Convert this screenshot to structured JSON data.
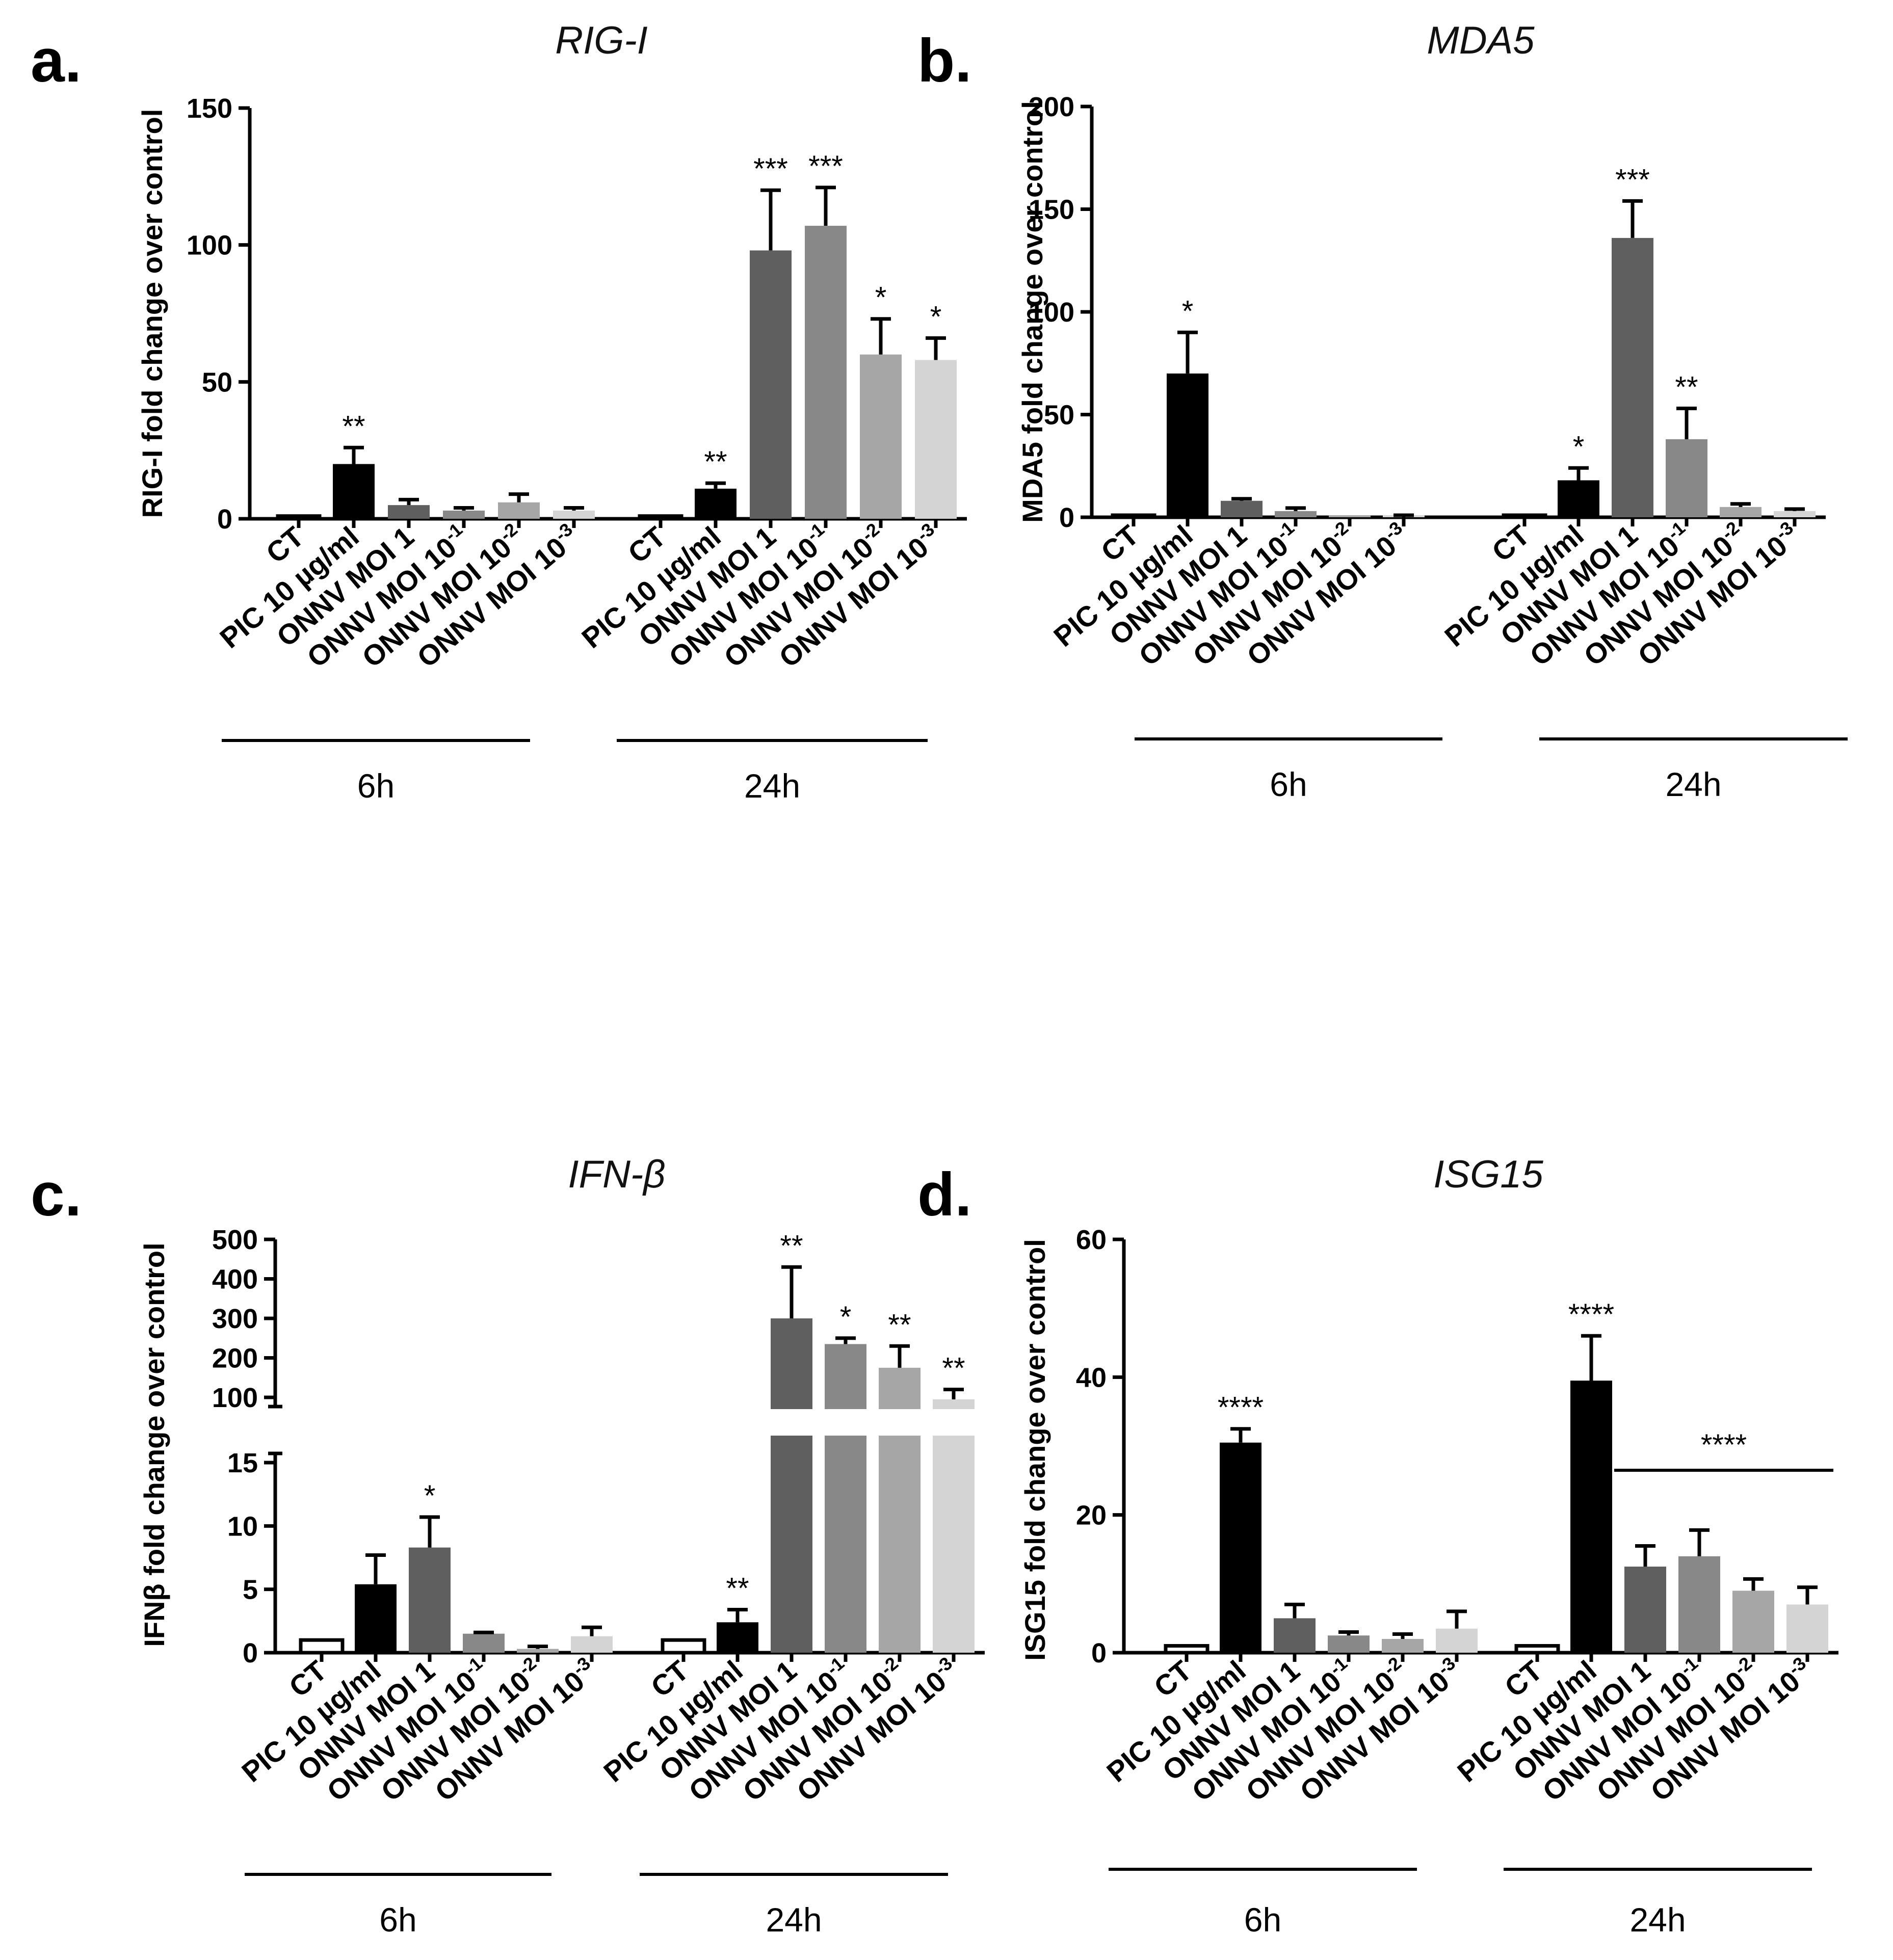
{
  "chart_data": [
    {
      "panel": "a.",
      "type": "bar",
      "title": "RIG-I",
      "ylabel": "RIG-I fold change over control",
      "ylim": [
        0,
        150
      ],
      "yticks": [
        "0",
        "50",
        "100",
        "150"
      ],
      "groups": [
        "6h",
        "24h"
      ],
      "categories": [
        "CT",
        "PIC 10 µg/ml",
        "ONNV MOI 1",
        "ONNV MOI 10-1",
        "ONNV MOI 10-2",
        "ONNV MOI 10-3"
      ],
      "series": [
        {
          "name": "6h",
          "values": [
            1,
            20,
            5,
            3,
            6,
            3
          ],
          "errors": [
            0,
            6,
            2,
            1,
            3,
            1
          ],
          "sig": [
            "",
            "**",
            "",
            "",
            "",
            ""
          ]
        },
        {
          "name": "24h",
          "values": [
            1,
            11,
            98,
            107,
            60,
            58
          ],
          "errors": [
            0,
            2,
            22,
            14,
            13,
            8
          ],
          "sig": [
            "",
            "**",
            "***",
            "***",
            "*",
            "*"
          ]
        }
      ]
    },
    {
      "panel": "b.",
      "type": "bar",
      "title": "MDA5",
      "ylabel": "MDA5 fold change over control",
      "ylim": [
        0,
        200
      ],
      "yticks": [
        "0",
        "50",
        "100",
        "150",
        "200"
      ],
      "groups": [
        "6h",
        "24h"
      ],
      "categories": [
        "CT",
        "PIC 10 µg/ml",
        "ONNV MOI 1",
        "ONNV MOI 10-1",
        "ONNV MOI 10-2",
        "ONNV MOI 10-3"
      ],
      "series": [
        {
          "name": "6h",
          "values": [
            1,
            70,
            8,
            3,
            0,
            0
          ],
          "errors": [
            0,
            20,
            1,
            1.5,
            0,
            1
          ],
          "sig": [
            "",
            "*",
            "",
            "",
            "",
            ""
          ]
        },
        {
          "name": "24h",
          "values": [
            1,
            18,
            136,
            38,
            5,
            3
          ],
          "errors": [
            0,
            6,
            18,
            15,
            1.5,
            1
          ],
          "sig": [
            "",
            "*",
            "***",
            "**",
            "",
            ""
          ]
        }
      ]
    },
    {
      "panel": "c.",
      "type": "bar",
      "title": "IFN-β",
      "ylabel": "IFNβ fold change over control",
      "ylim": [
        0,
        500
      ],
      "y_axis_break": [
        15,
        100
      ],
      "yticks_lower": [
        "0",
        "5",
        "10",
        "15"
      ],
      "yticks_upper": [
        "100",
        "200",
        "300",
        "400",
        "500"
      ],
      "groups": [
        "6h",
        "24h"
      ],
      "categories": [
        "CT",
        "PIC 10 µg/ml",
        "ONNV MOI 1",
        "ONNV MOI 10-1",
        "ONNV MOI 10-2",
        "ONNV MOI 10-3"
      ],
      "series": [
        {
          "name": "6h",
          "values": [
            1,
            5.4,
            8.3,
            1.5,
            0.3,
            1.3
          ],
          "errors": [
            0,
            2.3,
            2.4,
            0.1,
            0.2,
            0.7
          ],
          "sig": [
            "",
            "",
            "*",
            "",
            "",
            ""
          ]
        },
        {
          "name": "24h",
          "values": [
            1,
            2.4,
            300,
            235,
            175,
            95
          ],
          "errors": [
            0,
            1.0,
            130,
            15,
            55,
            25
          ],
          "sig": [
            "",
            "**",
            "**",
            "*",
            "**",
            "**"
          ]
        }
      ]
    },
    {
      "panel": "d.",
      "type": "bar",
      "title": "ISG15",
      "ylabel": "ISG15 fold change over control",
      "ylim": [
        0,
        60
      ],
      "yticks": [
        "0",
        "20",
        "40",
        "60"
      ],
      "groups": [
        "6h",
        "24h"
      ],
      "categories": [
        "CT",
        "PIC 10 µg/ml",
        "ONNV MOI 1",
        "ONNV MOI 10-1",
        "ONNV MOI 10-2",
        "ONNV MOI 10-3"
      ],
      "bracket_sig": "****",
      "series": [
        {
          "name": "6h",
          "values": [
            1,
            30.5,
            5,
            2.5,
            2,
            3.5
          ],
          "errors": [
            0,
            2,
            2,
            0.5,
            0.7,
            2.5
          ],
          "sig": [
            "",
            "****",
            "",
            "",
            "",
            ""
          ]
        },
        {
          "name": "24h",
          "values": [
            1,
            39.5,
            12.5,
            14,
            9,
            7
          ],
          "errors": [
            0,
            6.5,
            3,
            3.8,
            1.7,
            2.5
          ],
          "sig": [
            "",
            "****",
            "",
            "",
            "",
            ""
          ]
        }
      ]
    }
  ],
  "colors": {
    "fills": [
      "#ffffff",
      "#000000",
      "#5f5f5f",
      "#888888",
      "#a6a6a6",
      "#d4d4d4"
    ]
  }
}
